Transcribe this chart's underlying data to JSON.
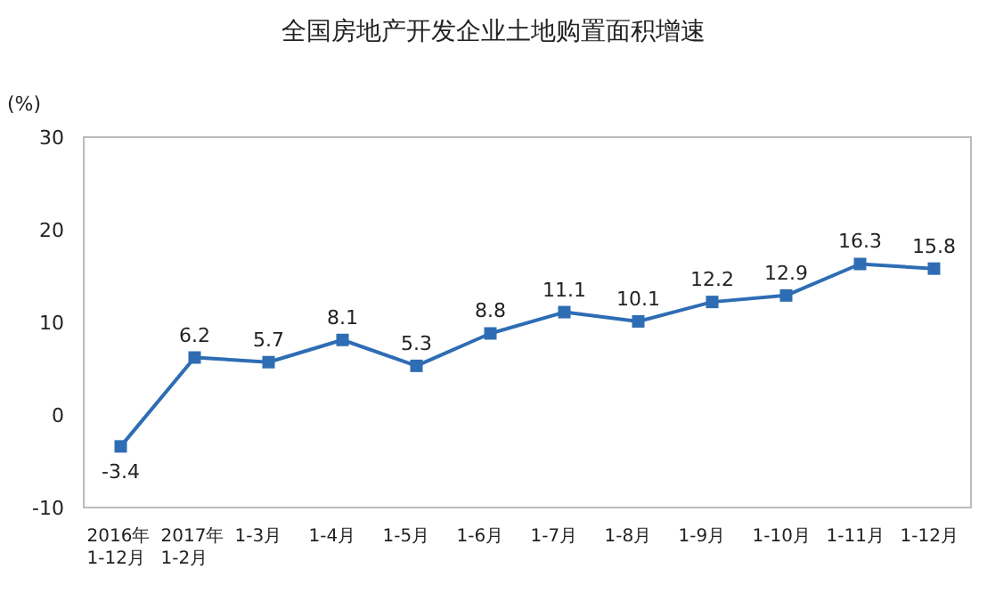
{
  "chart_data": {
    "type": "line",
    "title": "全国房地产开发企业土地购置面积增速",
    "ylabel": "(%)",
    "categories": [
      "2016年\n1-12月",
      "2017年\n1-2月",
      "1-3月",
      "1-4月",
      "1-5月",
      "1-6月",
      "1-7月",
      "1-8月",
      "1-9月",
      "1-10月",
      "1-11月",
      "1-12月"
    ],
    "series": [
      {
        "color": "#2e6db4",
        "values": [
          -3.4,
          6.2,
          5.7,
          8.1,
          5.3,
          8.8,
          11.1,
          10.1,
          12.2,
          12.9,
          16.3,
          15.8
        ]
      }
    ],
    "ylim": [
      -10,
      30
    ],
    "yticks": [
      -10,
      0,
      10,
      20,
      30
    ],
    "marker": "square",
    "line_style": "solid",
    "data_labels": true
  }
}
